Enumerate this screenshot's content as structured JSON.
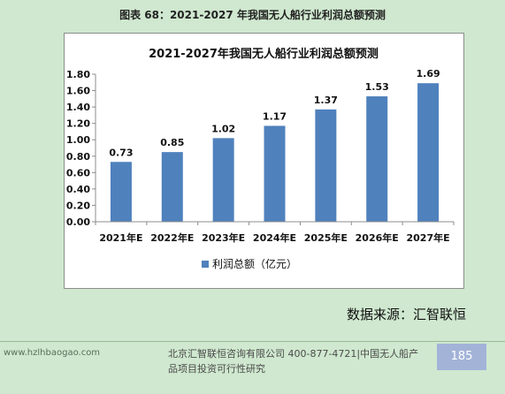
{
  "caption": "图表  68：2021-2027 年我国无人船行业利润总额预测",
  "source_note": "数据来源：汇智联恒",
  "footer": {
    "website": "www.hzlhbaogao.com",
    "company_line1": "北京汇智联恒咨询有限公司  400-877-4721|中国无人船产",
    "company_line2": "品项目投资可行性研究",
    "page_number": "185"
  },
  "colors": {
    "bar": "#4f81bd",
    "page_background": "#cfe8cf"
  },
  "chart_data": {
    "type": "bar",
    "title": "2021-2027年我国无人船行业利润总额预测",
    "categories": [
      "2021年E",
      "2022年E",
      "2023年E",
      "2024年E",
      "2025年E",
      "2026年E",
      "2027年E"
    ],
    "series": [
      {
        "name": "利润总额（亿元）",
        "values": [
          0.73,
          0.85,
          1.02,
          1.17,
          1.37,
          1.53,
          1.69
        ]
      }
    ],
    "data_labels": [
      "0.73",
      "0.85",
      "1.02",
      "1.17",
      "1.37",
      "1.53",
      "1.69"
    ],
    "ylim": [
      0,
      1.8
    ],
    "yticks": [
      "0.00",
      "0.20",
      "0.40",
      "0.60",
      "0.80",
      "1.00",
      "1.20",
      "1.40",
      "1.60",
      "1.80"
    ],
    "grid": false,
    "legend_position": "bottom"
  }
}
